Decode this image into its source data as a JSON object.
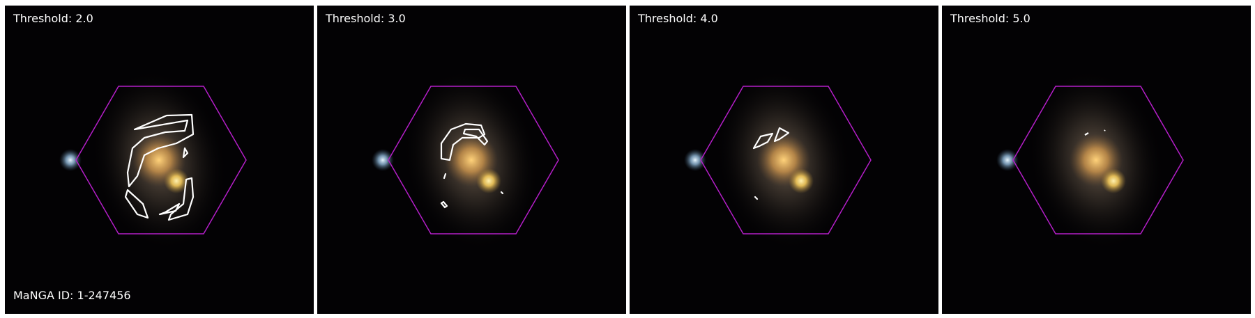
{
  "figure": {
    "manga_id_label": "MaNGA ID: 1-247456",
    "panels": [
      {
        "threshold_label": "Threshold: 2.0"
      },
      {
        "threshold_label": "Threshold: 3.0"
      },
      {
        "threshold_label": "Threshold: 4.0"
      },
      {
        "threshold_label": "Threshold: 5.0"
      }
    ]
  },
  "colors": {
    "background": "#030204",
    "hexagon": "#b41ec8",
    "contour": "#ffffff",
    "galaxy_core": "#d9a85a",
    "companion_star": "#f2c85a",
    "blue_star": "#bfe3ff"
  }
}
